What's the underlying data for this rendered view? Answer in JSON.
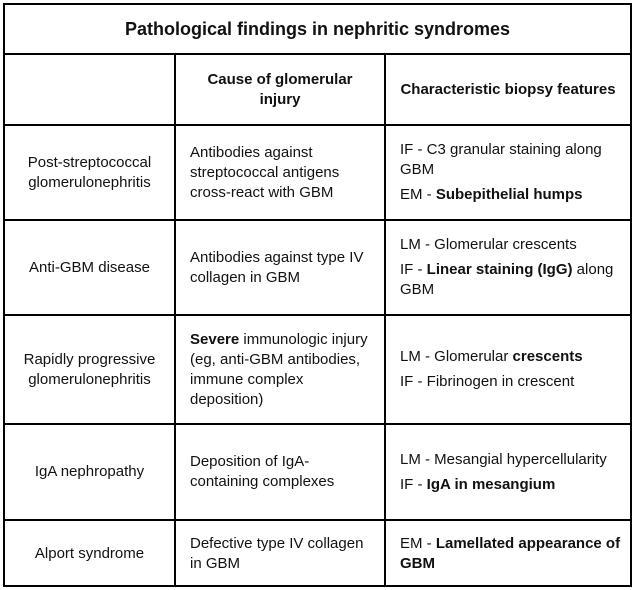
{
  "title": "Pathological findings in nephritic syndromes",
  "headers": {
    "condition": "",
    "cause": "Cause of glomerular injury",
    "features": "Characteristic biopsy features"
  },
  "rows": [
    {
      "condition": "Post-streptococcal glomerulonephritis",
      "cause": [
        {
          "text": "Antibodies against streptococcal antigens cross-react with GBM",
          "bold": false
        }
      ],
      "features": [
        [
          {
            "text": "IF - C3 granular staining along GBM",
            "bold": false
          }
        ],
        [
          {
            "text": "EM - ",
            "bold": false
          },
          {
            "text": "Subepithelial humps",
            "bold": true
          }
        ]
      ]
    },
    {
      "condition": "Anti-GBM disease",
      "cause": [
        {
          "text": "Antibodies against type IV collagen in GBM",
          "bold": false
        }
      ],
      "features": [
        [
          {
            "text": "LM - Glomerular crescents",
            "bold": false
          }
        ],
        [
          {
            "text": "IF - ",
            "bold": false
          },
          {
            "text": "Linear staining (IgG)",
            "bold": true
          },
          {
            "text": " along GBM",
            "bold": false
          }
        ]
      ]
    },
    {
      "condition": "Rapidly progressive glomerulonephritis",
      "cause": [
        {
          "text": "Severe",
          "bold": true
        },
        {
          "text": " immunologic injury (eg, anti-GBM antibodies, immune complex deposition)",
          "bold": false
        }
      ],
      "features": [
        [
          {
            "text": "LM - Glomerular ",
            "bold": false
          },
          {
            "text": "crescents",
            "bold": true
          }
        ],
        [
          {
            "text": "IF -  Fibrinogen in crescent",
            "bold": false
          }
        ]
      ]
    },
    {
      "condition": "IgA nephropathy",
      "cause": [
        {
          "text": "Deposition of IgA-containing complexes",
          "bold": false
        }
      ],
      "features": [
        [
          {
            "text": "LM - Mesangial hypercellularity",
            "bold": false
          }
        ],
        [
          {
            "text": "IF -  ",
            "bold": false
          },
          {
            "text": "IgA in mesangium",
            "bold": true
          }
        ]
      ]
    },
    {
      "condition": "Alport syndrome",
      "cause": [
        {
          "text": "Defective type IV collagen in GBM",
          "bold": false
        }
      ],
      "features": [
        [
          {
            "text": "EM - ",
            "bold": false
          },
          {
            "text": "Lamellated appearance of GBM",
            "bold": true
          }
        ]
      ]
    }
  ]
}
